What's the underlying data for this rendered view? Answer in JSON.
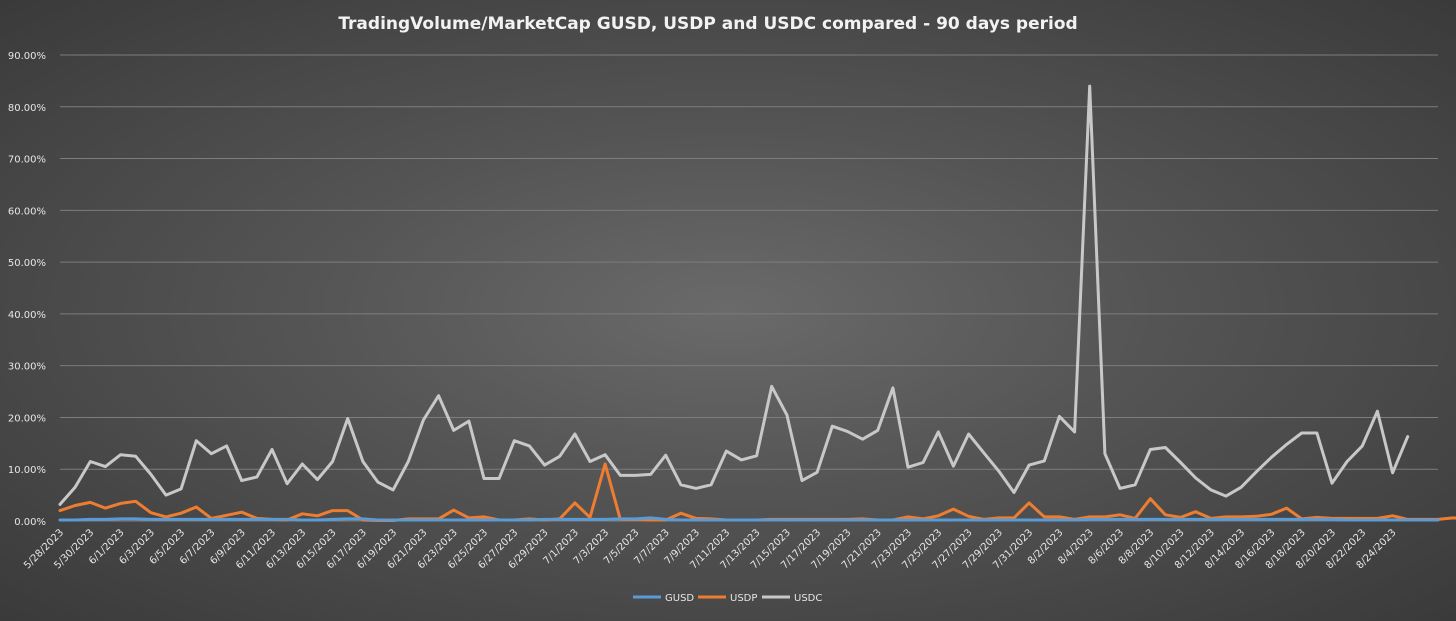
{
  "chart_data": {
    "type": "line",
    "title": "TradingVolume/MarketCap GUSD, USDP and USDC compared - 90 days period",
    "xlabel": "",
    "ylabel": "",
    "ylim": [
      0,
      90
    ],
    "y_ticks": [
      "0.00%",
      "10.00%",
      "20.00%",
      "30.00%",
      "40.00%",
      "50.00%",
      "60.00%",
      "70.00%",
      "80.00%",
      "90.00%"
    ],
    "grid": true,
    "legend_position": "bottom",
    "x_tick_labels": [
      "5/28/2023",
      "5/30/2023",
      "6/1/2023",
      "6/3/2023",
      "6/5/2023",
      "6/7/2023",
      "6/9/2023",
      "6/11/2023",
      "6/13/2023",
      "6/15/2023",
      "6/17/2023",
      "6/19/2023",
      "6/21/2023",
      "6/23/2023",
      "6/25/2023",
      "6/27/2023",
      "6/29/2023",
      "7/1/2023",
      "7/3/2023",
      "7/5/2023",
      "7/7/2023",
      "7/9/2023",
      "7/11/2023",
      "7/13/2023",
      "7/15/2023",
      "7/17/2023",
      "7/19/2023",
      "7/21/2023",
      "7/23/2023",
      "7/25/2023",
      "7/27/2023",
      "7/29/2023",
      "7/31/2023",
      "8/2/2023",
      "8/4/2023",
      "8/6/2023",
      "8/8/2023",
      "8/10/2023",
      "8/12/2023",
      "8/14/2023",
      "8/16/2023",
      "8/18/2023",
      "8/20/2023",
      "8/22/2023",
      "8/24/2023"
    ],
    "series": [
      {
        "name": "GUSD",
        "color": "#5b9bd5",
        "values": [
          0.2,
          0.2,
          0.3,
          0.3,
          0.4,
          0.4,
          0.3,
          0.3,
          0.3,
          0.3,
          0.3,
          0.3,
          0.3,
          0.3,
          0.3,
          0.3,
          0.2,
          0.2,
          0.3,
          0.4,
          0.4,
          0.2,
          0.2,
          0.2,
          0.2,
          0.2,
          0.2,
          0.2,
          0.2,
          0.2,
          0.2,
          0.2,
          0.3,
          0.3,
          0.3,
          0.3,
          0.3,
          0.4,
          0.4,
          0.6,
          0.3,
          0.2,
          0.2,
          0.2,
          0.2,
          0.2,
          0.2,
          0.2,
          0.2,
          0.2,
          0.2,
          0.2,
          0.2,
          0.2,
          0.2,
          0.2,
          0.2,
          0.2,
          0.2,
          0.2,
          0.2,
          0.2,
          0.2,
          0.2,
          0.2,
          0.2,
          0.2,
          0.2,
          0.3,
          0.3,
          0.3,
          0.3,
          0.3,
          0.3,
          0.3,
          0.3,
          0.3,
          0.3,
          0.3,
          0.3,
          0.3,
          0.3,
          0.3,
          0.3,
          0.3,
          0.2,
          0.2,
          0.2,
          0.2,
          0.2,
          0.2,
          0.2
        ]
      },
      {
        "name": "USDP",
        "color": "#ed7d31",
        "values": [
          2.0,
          3.0,
          3.6,
          2.5,
          3.4,
          3.8,
          1.6,
          0.8,
          1.5,
          2.7,
          0.5,
          1.1,
          1.7,
          0.5,
          0.3,
          0.2,
          1.4,
          1.0,
          2.0,
          2.0,
          0.2,
          0.1,
          0.1,
          0.4,
          0.4,
          0.4,
          2.1,
          0.6,
          0.8,
          0.2,
          0.2,
          0.4,
          0.2,
          0.4,
          3.5,
          0.7,
          11.0,
          0.3,
          0.3,
          0.2,
          0.2,
          1.5,
          0.5,
          0.4,
          0.2,
          0.2,
          0.2,
          0.3,
          0.3,
          0.3,
          0.3,
          0.3,
          0.3,
          0.4,
          0.2,
          0.2,
          0.8,
          0.4,
          1.0,
          2.3,
          0.9,
          0.3,
          0.6,
          0.6,
          3.5,
          0.8,
          0.8,
          0.3,
          0.8,
          0.8,
          1.2,
          0.5,
          4.3,
          1.2,
          0.7,
          1.8,
          0.5,
          0.8,
          0.8,
          0.9,
          1.3,
          2.5,
          0.4,
          0.7,
          0.5,
          0.5,
          0.5,
          0.5,
          1.0,
          0.3,
          0.3,
          0.3,
          0.6,
          0.5,
          2.6
        ]
      },
      {
        "name": "USDC",
        "color": "#c8c8c8",
        "values": [
          3.2,
          6.5,
          11.5,
          10.5,
          12.8,
          12.5,
          9.0,
          5.0,
          6.2,
          15.5,
          13.0,
          14.5,
          7.8,
          8.5,
          13.8,
          7.2,
          11.0,
          8.0,
          11.5,
          19.8,
          11.5,
          7.5,
          6.0,
          11.5,
          19.5,
          24.2,
          17.5,
          19.3,
          8.2,
          8.2,
          15.5,
          14.5,
          10.8,
          12.5,
          16.8,
          11.5,
          12.8,
          8.8,
          8.8,
          9.0,
          12.7,
          7.0,
          6.3,
          7.0,
          13.5,
          11.8,
          12.6,
          26.0,
          20.5,
          7.8,
          9.4,
          18.3,
          17.3,
          15.8,
          17.5,
          25.7,
          10.4,
          11.3,
          17.2,
          10.6,
          16.8,
          13.2,
          9.6,
          5.5,
          10.8,
          11.6,
          20.2,
          17.2,
          84.0,
          13.0,
          6.3,
          7.0,
          13.8,
          14.2,
          11.3,
          8.3,
          6.0,
          4.8,
          6.5,
          9.5,
          12.3,
          14.8,
          17.0,
          17.0,
          7.3,
          11.5,
          14.5,
          21.2,
          9.3,
          16.3
        ]
      }
    ]
  }
}
